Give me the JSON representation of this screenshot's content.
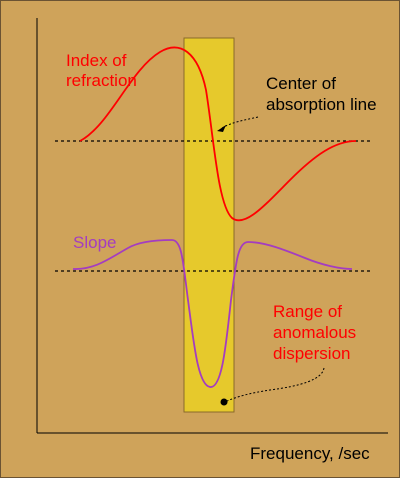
{
  "labels": {
    "index_line1": "Index of",
    "index_line2": "refraction",
    "center_line1": "Center of",
    "center_line2": "absorption line",
    "slope": "Slope",
    "range_line1": "Range of",
    "range_line2": "anomalous",
    "range_line3": "dispersion",
    "x_axis": "Frequency, /sec"
  },
  "colors": {
    "background": "#cfa35a",
    "band_fill": "#e6c92c",
    "band_stroke": "#8a6a2a",
    "index_curve": "#ff0000",
    "slope_curve": "#a43dc0",
    "text_red": "#ff0000",
    "text_purple": "#a43dc0",
    "text_black": "#000000"
  }
}
